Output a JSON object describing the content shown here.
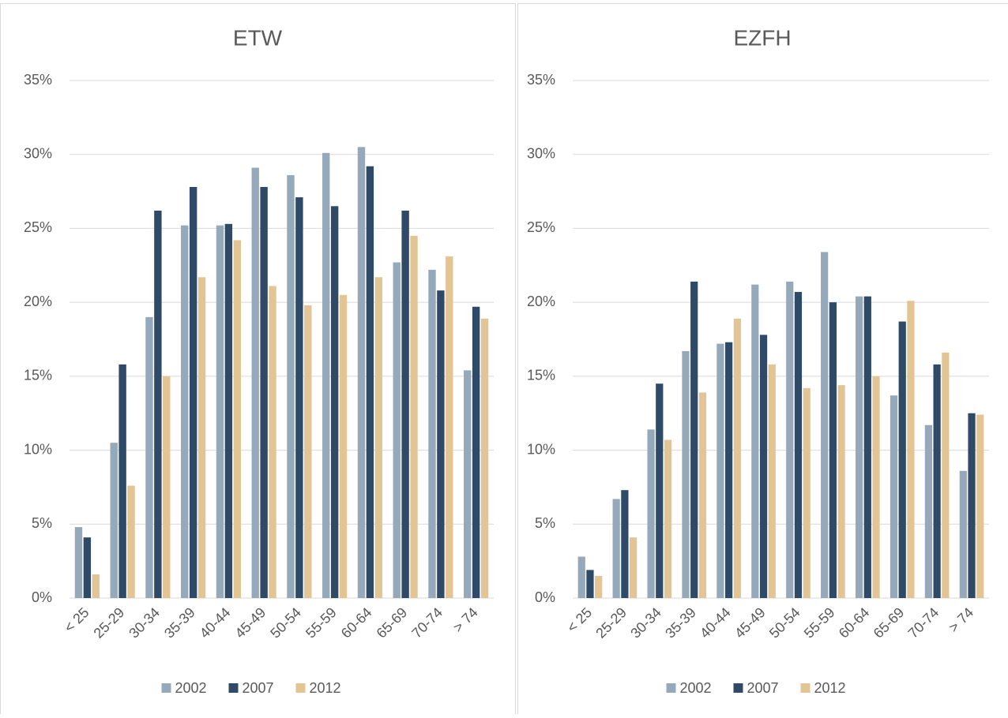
{
  "chart_data": [
    {
      "type": "bar",
      "title": "ETW",
      "categories": [
        "< 25",
        "25-29",
        "30-34",
        "35-39",
        "40-44",
        "45-49",
        "50-54",
        "55-59",
        "60-64",
        "65-69",
        "70-74",
        "> 74"
      ],
      "series": [
        {
          "name": "2002",
          "color": "#96a9bb",
          "values": [
            4.8,
            10.5,
            19.0,
            25.2,
            25.2,
            29.1,
            28.6,
            30.1,
            30.5,
            22.7,
            22.2,
            15.4
          ]
        },
        {
          "name": "2007",
          "color": "#2e4a66",
          "values": [
            4.1,
            15.8,
            26.2,
            27.8,
            25.3,
            27.8,
            27.1,
            26.5,
            29.2,
            26.2,
            20.8,
            19.7
          ]
        },
        {
          "name": "2012",
          "color": "#e3c595",
          "values": [
            1.6,
            7.6,
            15.0,
            21.7,
            24.2,
            21.1,
            19.8,
            20.5,
            21.7,
            24.5,
            23.1,
            18.9
          ]
        }
      ],
      "ylim": [
        0,
        35
      ],
      "yticks": [
        {
          "value": 0,
          "label": "0%"
        },
        {
          "value": 5,
          "label": "5%"
        },
        {
          "value": 10,
          "label": "10%"
        },
        {
          "value": 15,
          "label": "15%"
        },
        {
          "value": 20,
          "label": "20%"
        },
        {
          "value": 25,
          "label": "25%"
        },
        {
          "value": 30,
          "label": "30%"
        },
        {
          "value": 35,
          "label": "35%"
        }
      ],
      "grid": true,
      "legend": "bottom"
    },
    {
      "type": "bar",
      "title": "EZFH",
      "categories": [
        "< 25",
        "25-29",
        "30-34",
        "35-39",
        "40-44",
        "45-49",
        "50-54",
        "55-59",
        "60-64",
        "65-69",
        "70-74",
        "> 74"
      ],
      "series": [
        {
          "name": "2002",
          "color": "#96a9bb",
          "values": [
            2.8,
            6.7,
            11.4,
            16.7,
            17.2,
            21.2,
            21.4,
            23.4,
            20.4,
            13.7,
            11.7,
            8.6
          ]
        },
        {
          "name": "2007",
          "color": "#2e4a66",
          "values": [
            1.9,
            7.3,
            14.5,
            21.4,
            17.3,
            17.8,
            20.7,
            20.0,
            20.4,
            18.7,
            15.8,
            12.5
          ]
        },
        {
          "name": "2012",
          "color": "#e3c595",
          "values": [
            1.5,
            4.1,
            10.7,
            13.9,
            18.9,
            15.8,
            14.2,
            14.4,
            15.0,
            20.1,
            16.6,
            12.4
          ]
        }
      ],
      "ylim": [
        0,
        35
      ],
      "yticks": [
        {
          "value": 0,
          "label": "0%"
        },
        {
          "value": 5,
          "label": "5%"
        },
        {
          "value": 10,
          "label": "10%"
        },
        {
          "value": 15,
          "label": "15%"
        },
        {
          "value": 20,
          "label": "20%"
        },
        {
          "value": 25,
          "label": "25%"
        },
        {
          "value": 30,
          "label": "30%"
        },
        {
          "value": 35,
          "label": "35%"
        }
      ],
      "grid": true,
      "legend": "bottom"
    }
  ]
}
